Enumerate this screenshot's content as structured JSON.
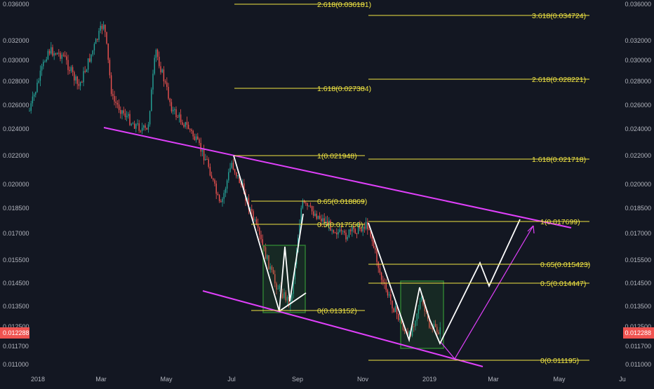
{
  "chart_data": {
    "type": "candlestick",
    "y_scale": "log",
    "ylim": [
      0.0105,
      0.0365
    ],
    "y_ticks": [
      "0.036000",
      "0.032000",
      "0.030000",
      "0.028000",
      "0.026000",
      "0.024000",
      "0.022000",
      "0.020000",
      "0.018500",
      "0.017000",
      "0.015500",
      "0.014500",
      "0.013500",
      "0.012500",
      "0.011700",
      "0.011000"
    ],
    "x_ticks": [
      "2018",
      "Mar",
      "May",
      "Jul",
      "Sep",
      "Nov",
      "2019",
      "Mar",
      "May",
      "Ju"
    ],
    "current_price": "0.012288",
    "colors": {
      "up": "#26a69a",
      "down": "#ef5350",
      "fib": "#f0e442",
      "channel": "#e040fb",
      "box_border": "#2e7d32",
      "pattern": "#ffffff",
      "price_tag": "#ef5350"
    },
    "series": [
      {
        "x": "2018-01",
        "value": 0.0255
      },
      {
        "x": "2018-01-20",
        "value": 0.031
      },
      {
        "x": "2018-02",
        "value": 0.0305
      },
      {
        "x": "2018-02-20",
        "value": 0.0275
      },
      {
        "x": "2018-03",
        "value": 0.034
      },
      {
        "x": "2018-03-15",
        "value": 0.0265
      },
      {
        "x": "2018-04",
        "value": 0.0245
      },
      {
        "x": "2018-04-20",
        "value": 0.0238
      },
      {
        "x": "2018-05",
        "value": 0.031
      },
      {
        "x": "2018-05-15",
        "value": 0.0255
      },
      {
        "x": "2018-06",
        "value": 0.024
      },
      {
        "x": "2018-06-15",
        "value": 0.0215
      },
      {
        "x": "2018-06-30",
        "value": 0.0185
      },
      {
        "x": "2018-07",
        "value": 0.0215
      },
      {
        "x": "2018-07-15",
        "value": 0.0195
      },
      {
        "x": "2018-08",
        "value": 0.0145
      },
      {
        "x": "2018-08-20",
        "value": 0.0136
      },
      {
        "x": "2018-09",
        "value": 0.0188
      },
      {
        "x": "2018-09-20",
        "value": 0.0178
      },
      {
        "x": "2018-10",
        "value": 0.0168
      },
      {
        "x": "2018-10-20",
        "value": 0.0172
      },
      {
        "x": "2018-11",
        "value": 0.0175
      },
      {
        "x": "2018-11-15",
        "value": 0.0145
      },
      {
        "x": "2018-12",
        "value": 0.012
      },
      {
        "x": "2018-12-15",
        "value": 0.0138
      },
      {
        "x": "2019-01",
        "value": 0.0125
      },
      {
        "x": "2019-01-15",
        "value": 0.0123
      }
    ],
    "fib_levels": [
      {
        "label": "2.618(0.036181)"
      },
      {
        "label": "1.618(0.027384)"
      },
      {
        "label": "1(0.021948)"
      },
      {
        "label": "0.65(0.018869)"
      },
      {
        "label": "0.5(0.017550)"
      },
      {
        "label": "0(0.013152)"
      },
      {
        "label": "3.618(0.034724)"
      },
      {
        "label": "2.618(0.028221)"
      },
      {
        "label": "1.618(0.021718)"
      },
      {
        "label": "1(0.017699)"
      },
      {
        "label": "0.65(0.015423)"
      },
      {
        "label": "0.5(0.014447)"
      },
      {
        "label": "0(0.011195)"
      }
    ]
  }
}
